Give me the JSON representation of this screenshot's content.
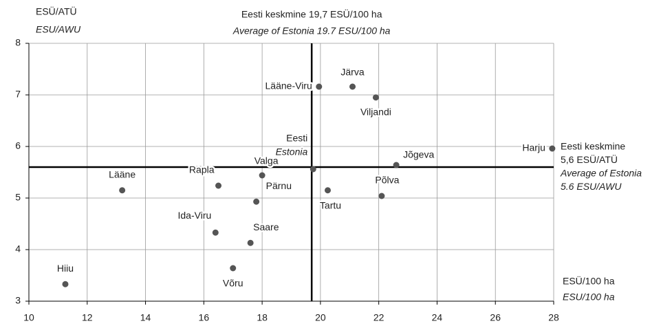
{
  "chart_data": {
    "type": "scatter",
    "y_label": [
      "ESÜ/ATÜ",
      "ESU/AWU"
    ],
    "x_label": [
      "ESÜ/100 ha",
      "ESU/100 ha"
    ],
    "vline": {
      "value": 19.7,
      "label": [
        "Eesti keskmine 19,7 ESÜ/100 ha",
        "Average of Estonia 19.7 ESU/100 ha"
      ]
    },
    "hline": {
      "value": 5.6,
      "label": [
        "Eesti keskmine",
        "5,6 ESÜ/ATÜ",
        "Average of Estonia",
        "5.6 ESU/AWU"
      ]
    },
    "xlim": [
      10,
      28
    ],
    "xticks": [
      10,
      12,
      14,
      16,
      18,
      20,
      22,
      24,
      26,
      28
    ],
    "ylim": [
      3,
      8
    ],
    "yticks": [
      3,
      4,
      5,
      6,
      7,
      8
    ],
    "grid": true,
    "series": [
      {
        "color": "#555555",
        "x": [
          11.25,
          13.2,
          16.5,
          18.0,
          17.8,
          16.4,
          17.6,
          17.0,
          19.75,
          20.25,
          22.1,
          22.6,
          27.95,
          19.95,
          21.1,
          21.9
        ],
        "values": [
          3.33,
          5.15,
          5.24,
          5.44,
          4.93,
          4.33,
          4.13,
          3.64,
          5.56,
          5.15,
          5.04,
          5.64,
          5.96,
          7.16,
          7.16,
          6.95
        ],
        "point_labels": [
          [
            "Hiiu"
          ],
          [
            "Lääne"
          ],
          [
            "Rapla"
          ],
          [
            "Valga"
          ],
          [
            "Pärnu"
          ],
          [
            "Ida-Viru"
          ],
          [
            "Saare"
          ],
          [
            "Võru"
          ],
          [
            "Eesti",
            "Estonia"
          ],
          [
            "Tartu"
          ],
          [
            "Põlva"
          ],
          [
            "Jõgeva"
          ],
          [
            "Harju"
          ],
          [
            "Lääne-Viru"
          ],
          [
            "Järva"
          ],
          [
            "Viljandi"
          ]
        ]
      }
    ]
  }
}
